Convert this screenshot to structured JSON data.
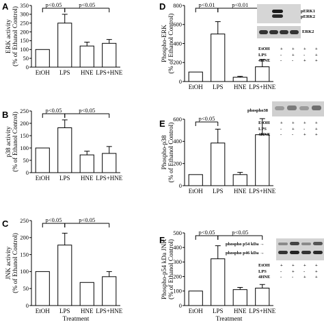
{
  "chart_data": [
    {
      "type": "bar",
      "panel": "A",
      "categories": [
        "EtOH",
        "LPS",
        "HNE",
        "LPS+HNE"
      ],
      "values": [
        100,
        250,
        120,
        135
      ],
      "errors": [
        0,
        50,
        22,
        22
      ],
      "ylabel": [
        "ERK activity",
        "(% of Ethanol Control)"
      ],
      "xlabel": "",
      "ylim": [
        0,
        350
      ],
      "yticks": [
        0,
        50,
        100,
        150,
        200,
        250,
        300,
        350
      ],
      "annotations": [
        {
          "text": "p<0.05",
          "from": 0,
          "to": 1
        },
        {
          "text": "p<0.05",
          "from": 1,
          "to": 3
        }
      ]
    },
    {
      "type": "bar",
      "panel": "B",
      "categories": [
        "EtOH",
        "LPS",
        "HNE",
        "LPS+HNE"
      ],
      "values": [
        100,
        182,
        72,
        78
      ],
      "errors": [
        0,
        32,
        15,
        28
      ],
      "ylabel": [
        "p38 activity",
        "(% of Ethanol Control)"
      ],
      "xlabel": "",
      "ylim": [
        0,
        250
      ],
      "yticks": [
        0,
        50,
        100,
        150,
        200,
        250
      ],
      "annotations": [
        {
          "text": "p<0.05",
          "from": 0,
          "to": 1
        },
        {
          "text": "p<0.05",
          "from": 1,
          "to": 3
        }
      ]
    },
    {
      "type": "bar",
      "panel": "C",
      "categories": [
        "EtOH",
        "LPS",
        "HNE",
        "LPS+HNE"
      ],
      "values": [
        100,
        178,
        68,
        85
      ],
      "errors": [
        0,
        35,
        0,
        15
      ],
      "ylabel": [
        "JNK activity",
        "(% of Ethanol Control)"
      ],
      "xlabel": "Treatment",
      "ylim": [
        0,
        250
      ],
      "yticks": [
        0,
        50,
        100,
        150,
        200,
        250
      ],
      "annotations": [
        {
          "text": "p<0.05",
          "from": 0,
          "to": 1
        },
        {
          "text": "p<0.05",
          "from": 1,
          "to": 3
        }
      ]
    },
    {
      "type": "bar",
      "panel": "D",
      "categories": [
        "EtOH",
        "LPS",
        "HNE",
        "LPS+HNE"
      ],
      "values": [
        100,
        500,
        45,
        155
      ],
      "errors": [
        0,
        130,
        10,
        75
      ],
      "ylabel": [
        "Phospho-ERK",
        "(% of Ethanol Control)"
      ],
      "xlabel": "",
      "ylim": [
        0,
        800
      ],
      "yticks": [
        0,
        200,
        400,
        600,
        800
      ],
      "annotations": [
        {
          "text": "p<0.01",
          "from": 0,
          "to": 1
        },
        {
          "text": "p<0.01",
          "from": 1,
          "to": 3
        }
      ]
    },
    {
      "type": "bar",
      "panel": "E",
      "categories": [
        "EtOH",
        "LPS",
        "HNE",
        "LPS+HNE"
      ],
      "values": [
        100,
        385,
        100,
        460
      ],
      "errors": [
        0,
        125,
        20,
        145
      ],
      "ylabel": [
        "Phospho-p38",
        "(% of Ethanol Control)"
      ],
      "xlabel": "",
      "ylim": [
        0,
        600
      ],
      "yticks": [
        0,
        200,
        400,
        600
      ],
      "annotations": [
        {
          "text": "p<0.05",
          "from": 0,
          "to": 1
        }
      ]
    },
    {
      "type": "bar",
      "panel": "F",
      "categories": [
        "EtOH",
        "LPS",
        "HNE",
        "LPS+HNE"
      ],
      "values": [
        100,
        322,
        110,
        120
      ],
      "errors": [
        0,
        90,
        15,
        25
      ],
      "ylabel": [
        "Phospho-p54 kDa JNK",
        "(% of Ethanol Control)"
      ],
      "xlabel": "Treatment",
      "ylim": [
        0,
        500
      ],
      "yticks": [
        0,
        100,
        200,
        300,
        400,
        500
      ],
      "annotations": [
        {
          "text": "p<0.05",
          "from": 0,
          "to": 1
        },
        {
          "text": "p<0.05",
          "from": 1,
          "to": 3
        }
      ]
    }
  ],
  "blots": {
    "D": {
      "band_labels": [
        "pERK1",
        "pERK2",
        "ERK2"
      ],
      "conditions": [
        {
          "label": "EtOH",
          "signs": [
            "+",
            "+",
            "+",
            "+"
          ]
        },
        {
          "label": "LPS",
          "signs": [
            "-",
            "+",
            "-",
            "+"
          ]
        },
        {
          "label": "4HNE",
          "signs": [
            "-",
            "-",
            "+",
            "+"
          ]
        }
      ]
    },
    "E": {
      "band_labels": [
        "phospho38"
      ],
      "conditions": [
        {
          "label": "EtOH",
          "signs": [
            "+",
            "+",
            "+",
            "+"
          ]
        },
        {
          "label": "LPS",
          "signs": [
            "-",
            "+",
            "-",
            "+"
          ]
        },
        {
          "label": "4HNE",
          "signs": [
            "-",
            "-",
            "+",
            "+"
          ]
        }
      ]
    },
    "F": {
      "band_labels": [
        "phospho p54 kDa",
        "phospho p46 kDa"
      ],
      "conditions": [
        {
          "label": "EtOH",
          "signs": [
            "+",
            "+",
            "+",
            "+"
          ]
        },
        {
          "label": "LPS",
          "signs": [
            "-",
            "+",
            "-",
            "+"
          ]
        },
        {
          "label": "4HNE",
          "signs": [
            "-",
            "-",
            "+",
            "+"
          ]
        }
      ]
    }
  }
}
